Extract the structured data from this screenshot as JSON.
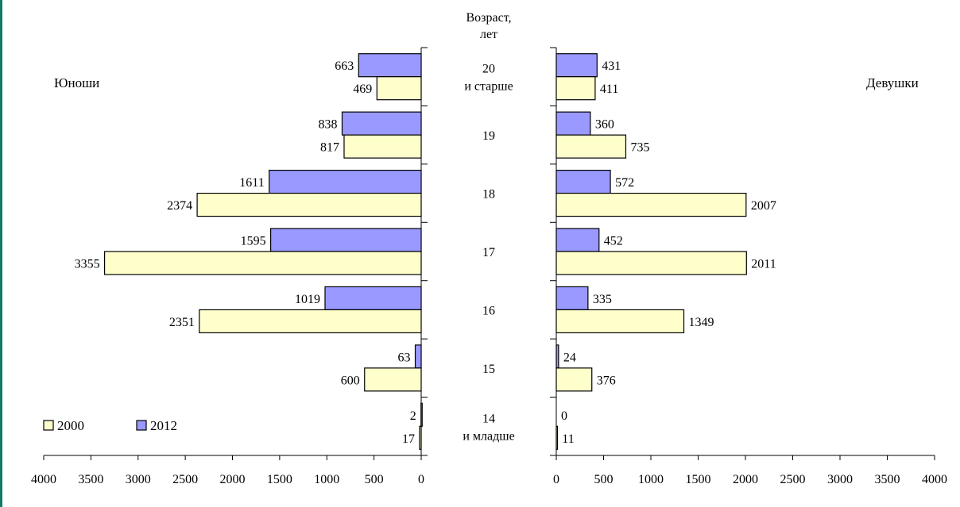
{
  "chart_data": {
    "type": "bar",
    "orientation": "horizontal",
    "layout": "population-pyramid",
    "center_title_lines": [
      "Возраст,",
      "лет"
    ],
    "categories": [
      {
        "lines": [
          "20",
          "и старше"
        ]
      },
      {
        "lines": [
          "19"
        ]
      },
      {
        "lines": [
          "18"
        ]
      },
      {
        "lines": [
          "17"
        ]
      },
      {
        "lines": [
          "16"
        ]
      },
      {
        "lines": [
          "15"
        ]
      },
      {
        "lines": [
          "14",
          "и младше"
        ]
      }
    ],
    "panels": {
      "left": {
        "title": "Юноши",
        "xlim": [
          0,
          4000
        ],
        "ticks": [
          "4000",
          "3500",
          "3000",
          "2500",
          "2000",
          "1500",
          "1000",
          "500",
          "0"
        ],
        "series": [
          {
            "name": "2000",
            "values": [
              469,
              817,
              2374,
              3355,
              2351,
              600,
              17
            ]
          },
          {
            "name": "2012",
            "values": [
              663,
              838,
              1611,
              1595,
              1019,
              63,
              2
            ]
          }
        ]
      },
      "right": {
        "title": "Девушки",
        "xlim": [
          0,
          4000
        ],
        "ticks": [
          "0",
          "500",
          "1000",
          "1500",
          "2000",
          "2500",
          "3000",
          "3500",
          "4000"
        ],
        "series": [
          {
            "name": "2000",
            "values": [
              411,
              735,
              2007,
              2011,
              1349,
              376,
              11
            ]
          },
          {
            "name": "2012",
            "values": [
              431,
              360,
              572,
              452,
              335,
              24,
              0
            ]
          }
        ]
      }
    },
    "legend": {
      "placement": "bottom-left",
      "items": [
        {
          "name": "2000",
          "color": "#ffffcc"
        },
        {
          "name": "2012",
          "color": "#9999ff"
        }
      ]
    },
    "colors": {
      "2000": "#ffffcc",
      "2012": "#9999ff",
      "border": "#000000"
    },
    "grid": false
  }
}
